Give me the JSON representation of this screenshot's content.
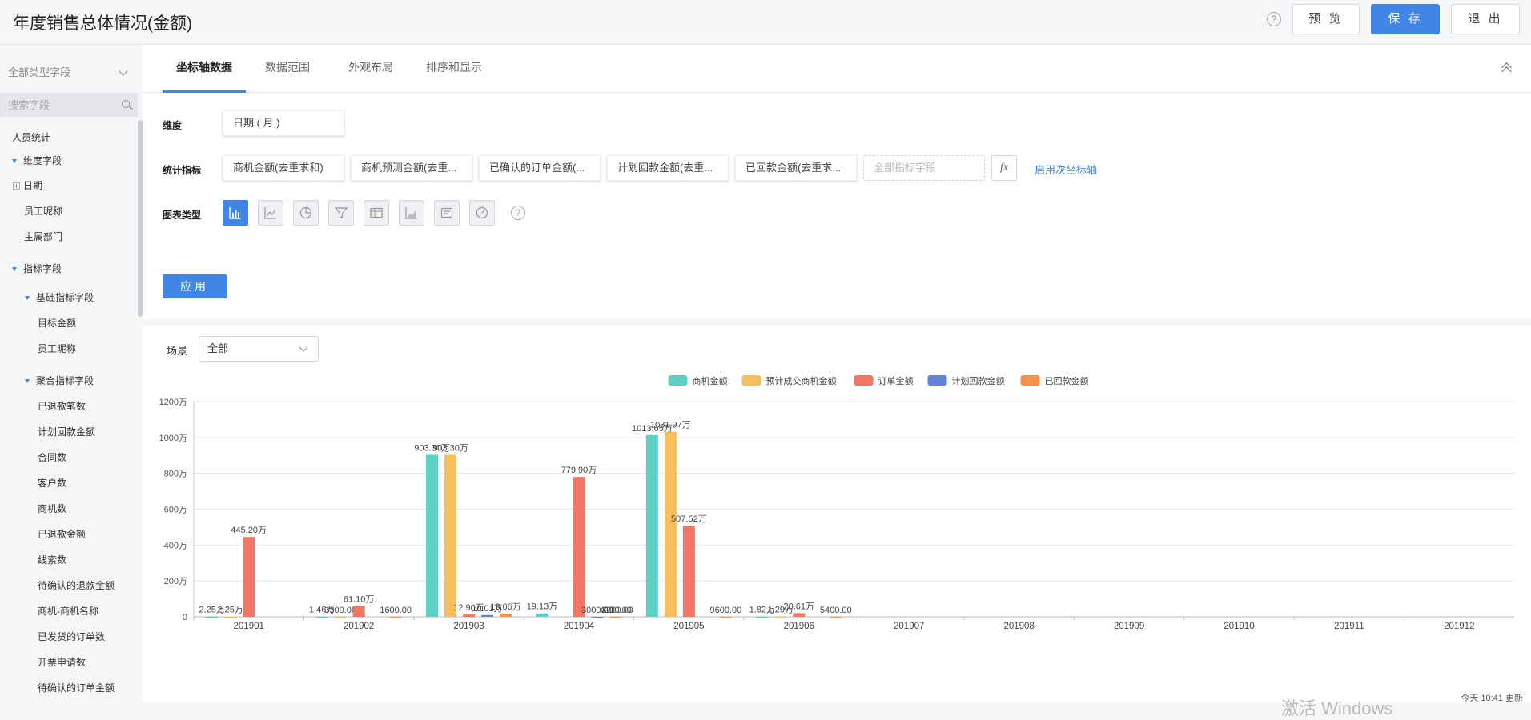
{
  "header": {
    "title": "年度销售总体情况(金额)",
    "preview_label": "预 览",
    "save_label": "保 存",
    "exit_label": "退 出",
    "help_glyph": "?"
  },
  "sidebar": {
    "type_filter": "全部类型字段",
    "search_placeholder": "搜索字段",
    "items": [
      {
        "label": "人员统计"
      },
      {
        "label": "维度字段"
      },
      {
        "label": "日期"
      },
      {
        "label": "员工昵称"
      },
      {
        "label": "主属部门"
      },
      {
        "label": "指标字段"
      },
      {
        "label": "基础指标字段"
      },
      {
        "label": "目标金额"
      },
      {
        "label": "员工昵称"
      },
      {
        "label": "聚合指标字段"
      },
      {
        "label": "已退款笔数"
      },
      {
        "label": "计划回款金额"
      },
      {
        "label": "合同数"
      },
      {
        "label": "客户数"
      },
      {
        "label": "商机数"
      },
      {
        "label": "已退款金额"
      },
      {
        "label": "线索数"
      },
      {
        "label": "待确认的退款金额"
      },
      {
        "label": "商机-商机名称"
      },
      {
        "label": "已发货的订单数"
      },
      {
        "label": "开票申请数"
      },
      {
        "label": "待确认的订单金额"
      }
    ]
  },
  "tabs": [
    "坐标轴数据",
    "数据范围",
    "外观布局",
    "排序和显示"
  ],
  "config": {
    "dimension_label": "维度",
    "dimension_value": "日期 ( 月 )",
    "metrics_label": "统计指标",
    "metrics": [
      "商机金额(去重求和)",
      "商机预测金额(去重...",
      "已确认的订单金额(...",
      "计划回款金额(去重...",
      "已回款金额(去重求..."
    ],
    "metric_placeholder": "全部指标字段",
    "fx_label": "fx",
    "secondary_axis_link": "启用次坐标轴",
    "chart_type_label": "图表类型",
    "chart_types": [
      "bar-chart-icon",
      "line-chart-icon",
      "pie-chart-icon",
      "funnel-chart-icon",
      "table-chart-icon",
      "area-chart-icon",
      "card-chart-icon",
      "gauge-chart-icon"
    ],
    "apply_label": "应用"
  },
  "scene": {
    "label": "场景",
    "value": "全部"
  },
  "chart_data": {
    "type": "bar",
    "categories": [
      "201901",
      "201902",
      "201903",
      "201904",
      "201905",
      "201906",
      "201907",
      "201908",
      "201909",
      "201910",
      "201911",
      "201912"
    ],
    "ylim": [
      0,
      1200
    ],
    "yticks": [
      "0",
      "200万",
      "400万",
      "600万",
      "800万",
      "1000万",
      "1200万"
    ],
    "grid": true,
    "legend_position": "top-center",
    "series": [
      {
        "name": "商机金额",
        "color": "#5ecfc3",
        "values": [
          2.25,
          1.46,
          903.3,
          19.13,
          1013.65,
          1.82,
          null,
          null,
          null,
          null,
          null,
          null
        ],
        "labels": [
          "2.25万",
          "1.46万",
          "903.30万",
          "19.13万",
          "1013.65万",
          "1.82万",
          "",
          "",
          "",
          "",
          "",
          ""
        ]
      },
      {
        "name": "预计成交商机金额",
        "color": "#f6bf5e",
        "values": [
          2.25,
          0.33,
          903.3,
          null,
          1031.97,
          1.29,
          null,
          null,
          null,
          null,
          null,
          null
        ],
        "labels": [
          "2.25万",
          "3300.00",
          "903.30万",
          "",
          "1031.97万",
          "1.29万",
          "",
          "",
          "",
          "",
          "",
          ""
        ]
      },
      {
        "name": "订单金额",
        "color": "#f07766",
        "values": [
          445.2,
          61.1,
          12.9,
          779.9,
          507.52,
          20.61,
          null,
          null,
          null,
          null,
          null,
          null
        ],
        "labels": [
          "445.20万",
          "61.10万",
          "12.90万",
          "779.90万",
          "507.52万",
          "20.61万",
          "",
          "",
          "",
          "",
          "",
          ""
        ]
      },
      {
        "name": "计划回款金额",
        "color": "#6384d6",
        "values": [
          null,
          null,
          10.01,
          0.3,
          null,
          null,
          null,
          null,
          null,
          null,
          null,
          null
        ],
        "labels": [
          "",
          "",
          "10.01万",
          "3000.00",
          "",
          "",
          "",
          "",
          "",
          "",
          "",
          ""
        ]
      },
      {
        "name": "已回款金额",
        "color": "#f5934d",
        "values": [
          null,
          0.16,
          18.06,
          0.41,
          0.96,
          0.54,
          null,
          null,
          null,
          null,
          null,
          null
        ],
        "labels": [
          "",
          "1600.00",
          "18.06万",
          "4100.00",
          "9600.00",
          "5400.00",
          "",
          "",
          "",
          "",
          "",
          ""
        ]
      }
    ],
    "extra_labels": [
      {
        "category": "201904",
        "text": "3200.00"
      }
    ]
  },
  "footer": {
    "watermark": "激活 Windows",
    "update_time": "今天 10:41 更新"
  }
}
